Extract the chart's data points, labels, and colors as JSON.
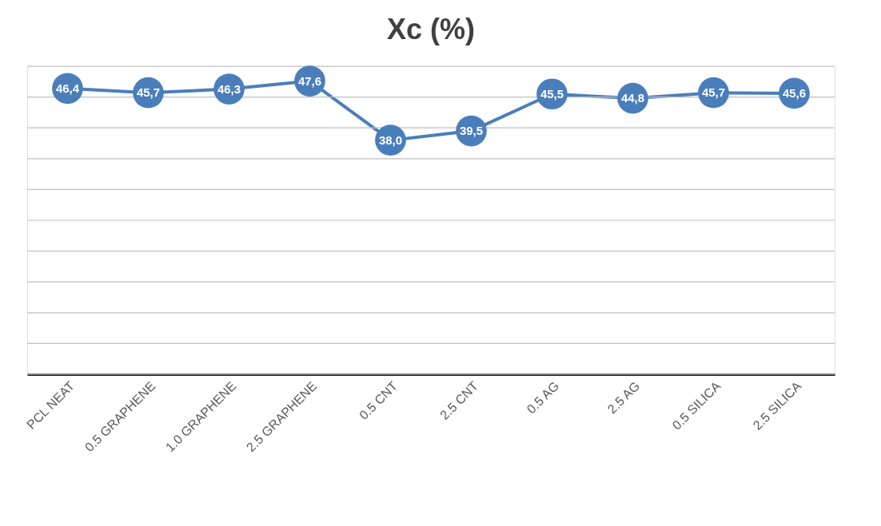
{
  "chart_data": {
    "type": "line",
    "title": "Xc (%)",
    "categories": [
      "PCL NEAT",
      "0.5 GRAPHENE",
      "1.0 GRAPHENE",
      "2.5 GRAPHENE",
      "0.5 CNT",
      "2.5 CNT",
      "0.5 AG",
      "2.5 AG",
      "0.5 SILICA",
      "2.5 SILICA"
    ],
    "series": [
      {
        "color": "#4a7ebb",
        "values": [
          46.4,
          45.7,
          46.3,
          47.6,
          38.0,
          39.5,
          45.5,
          44.8,
          45.7,
          45.6
        ],
        "value_labels": [
          "46,4",
          "45,7",
          "46,3",
          "47,6",
          "38,0",
          "39,5",
          "45,5",
          "44,8",
          "45,7",
          "45,6"
        ]
      }
    ],
    "ylim": [
      0,
      50
    ],
    "yticks": [
      {
        "value": 0,
        "label": null
      },
      {
        "value": 5,
        "label": null
      },
      {
        "value": 10,
        "label": null
      },
      {
        "value": 15,
        "label": null
      },
      {
        "value": 20,
        "label": null
      },
      {
        "value": 25,
        "label": null
      },
      {
        "value": 30,
        "label": null
      },
      {
        "value": 35,
        "label": null
      },
      {
        "value": 40,
        "label": null
      },
      {
        "value": 45,
        "label": null
      },
      {
        "value": 50,
        "label": null
      }
    ],
    "tick_labels": "x",
    "grid": "y",
    "marker": "circle",
    "line_style": "solid"
  }
}
